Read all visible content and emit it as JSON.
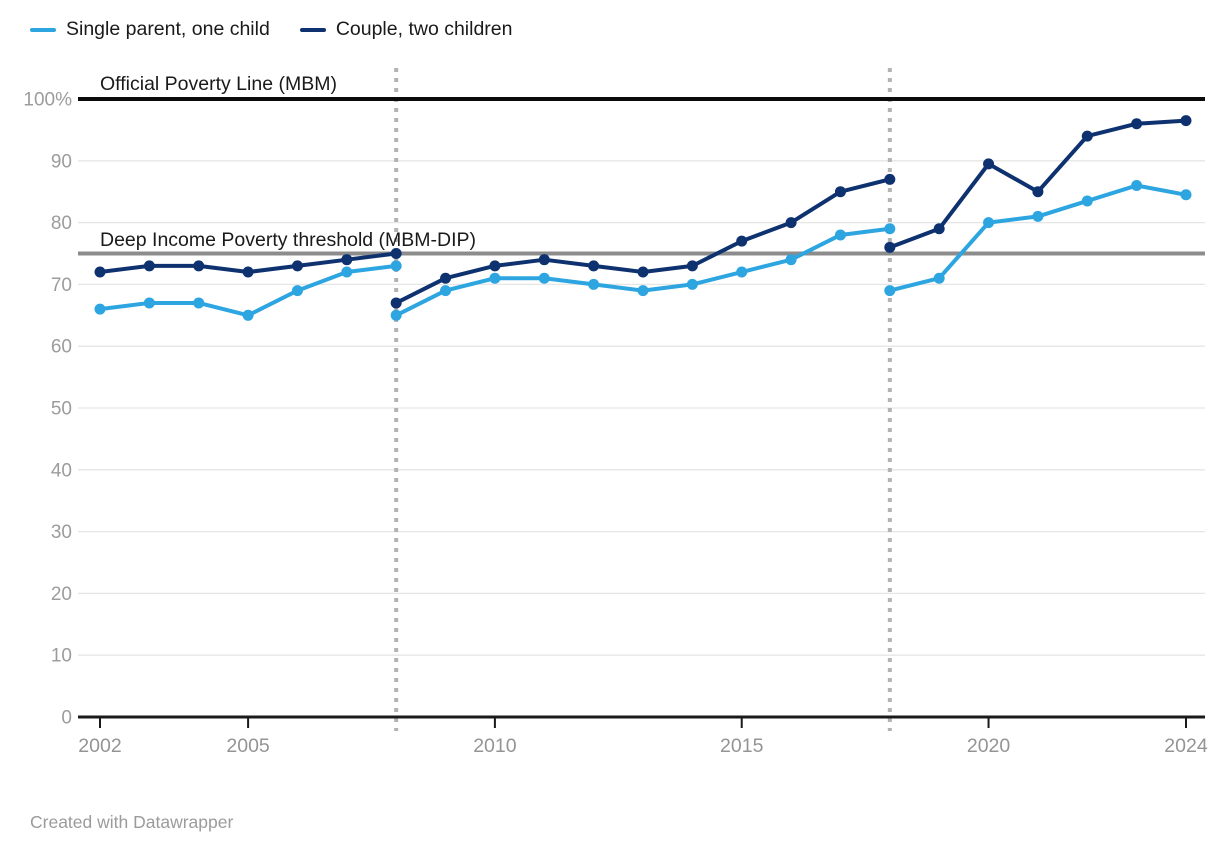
{
  "legend": {
    "items": [
      {
        "label": "Single parent, one child",
        "color": "#2da5e0"
      },
      {
        "label": "Couple, two children",
        "color": "#0e326f"
      }
    ]
  },
  "chart_data": {
    "type": "line",
    "title": "",
    "x_range": [
      2002,
      2024
    ],
    "x_tick_labels": [
      "2002",
      "2005",
      "2010",
      "2015",
      "2020",
      "2024"
    ],
    "x_tick_years": [
      2002,
      2005,
      2010,
      2015,
      2020,
      2024
    ],
    "ylim": [
      0,
      100
    ],
    "y_tick_values": [
      0,
      10,
      20,
      30,
      40,
      50,
      60,
      70,
      80,
      90,
      100
    ],
    "y_tick_labels": [
      "0",
      "10",
      "20",
      "30",
      "40",
      "50",
      "60",
      "70",
      "80",
      "90",
      "100%"
    ],
    "grid": "horizontal",
    "legend_position": "top-left",
    "reference_lines": [
      {
        "label": "Official Poverty Line (MBM)",
        "value": 100,
        "color": "#0b0b0b"
      },
      {
        "label": "Deep Income Poverty threshold (MBM-DIP)",
        "value": 75,
        "color": "#8c8c8c"
      }
    ],
    "break_markers": {
      "style": "dotted-vertical",
      "color": "#b3b3b3",
      "years": [
        2008,
        2018
      ]
    },
    "series": [
      {
        "name": "Single parent, one child",
        "color": "#2da5e0",
        "segments": [
          {
            "x": [
              2002,
              2003,
              2004,
              2005,
              2006,
              2007,
              2008
            ],
            "y": [
              66,
              67,
              67,
              65,
              69,
              72,
              73
            ]
          },
          {
            "x": [
              2008,
              2009,
              2010,
              2011,
              2012,
              2013,
              2014,
              2015,
              2016,
              2017,
              2018
            ],
            "y": [
              65,
              69,
              71,
              71,
              70,
              69,
              70,
              72,
              74,
              78,
              79
            ]
          },
          {
            "x": [
              2018,
              2019,
              2020,
              2021,
              2022,
              2023,
              2024
            ],
            "y": [
              69,
              71,
              80,
              81,
              83.5,
              86,
              84.5
            ]
          }
        ]
      },
      {
        "name": "Couple, two children",
        "color": "#0e326f",
        "segments": [
          {
            "x": [
              2002,
              2003,
              2004,
              2005,
              2006,
              2007,
              2008
            ],
            "y": [
              72,
              73,
              73,
              72,
              73,
              74,
              75
            ]
          },
          {
            "x": [
              2008,
              2009,
              2010,
              2011,
              2012,
              2013,
              2014,
              2015,
              2016,
              2017,
              2018
            ],
            "y": [
              67,
              71,
              73,
              74,
              73,
              72,
              73,
              77,
              80,
              85,
              87
            ]
          },
          {
            "x": [
              2018,
              2019,
              2020,
              2021,
              2022,
              2023,
              2024
            ],
            "y": [
              76,
              79,
              89.5,
              85,
              94,
              96,
              96.5
            ]
          }
        ]
      }
    ]
  },
  "footer": {
    "credit": "Created with Datawrapper"
  }
}
